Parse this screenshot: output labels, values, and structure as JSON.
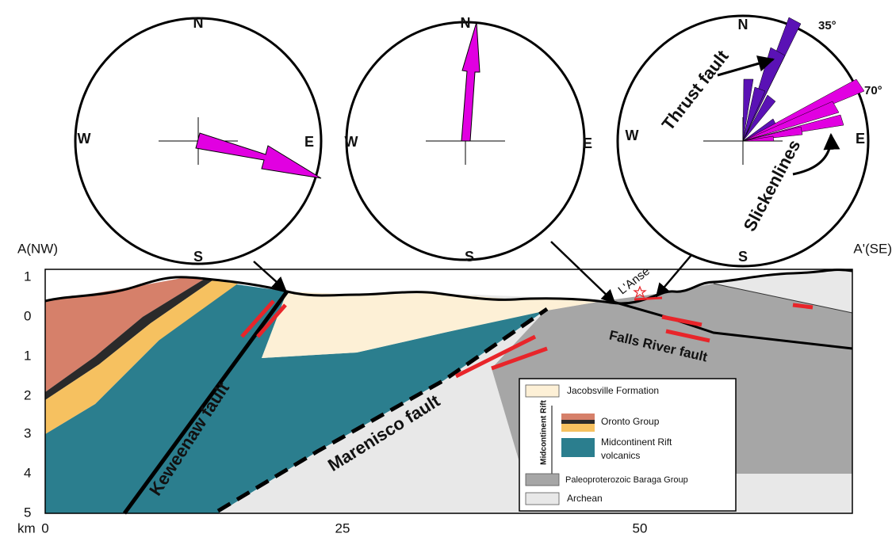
{
  "stereonets": [
    {
      "north": "N",
      "south": "S",
      "west": "W",
      "east": "E"
    },
    {
      "north": "N",
      "south": "S",
      "west": "W",
      "east": "E"
    },
    {
      "north": "N",
      "south": "S",
      "west": "W",
      "east": "E",
      "angle_labels": [
        "35°",
        "70°"
      ],
      "annotations": [
        "Thrust fault",
        "Slickenlines"
      ]
    }
  ],
  "section": {
    "left_end": "A(NW)",
    "right_end": "A'(SE)",
    "depth_labels": [
      "1",
      "0",
      "1",
      "2",
      "3",
      "4",
      "5"
    ],
    "depth_unit": "km",
    "distance_labels": [
      "0",
      "25",
      "50"
    ],
    "town": "L'Anse",
    "faults": [
      "Keweenaw fault",
      "Marenisco fault",
      "Falls River fault"
    ]
  },
  "legend": {
    "group_label": "Midcontinent Rift",
    "items": [
      {
        "lines": [
          "Jacobsville Formation"
        ]
      },
      {
        "lines": [
          "Oronto Group"
        ]
      },
      {
        "lines": [
          "Midcontinent Rift",
          "volcanics"
        ]
      },
      {
        "lines": [
          "Paleoproterozoic Baraga Group"
        ]
      },
      {
        "lines": [
          "Archean"
        ]
      }
    ]
  }
}
